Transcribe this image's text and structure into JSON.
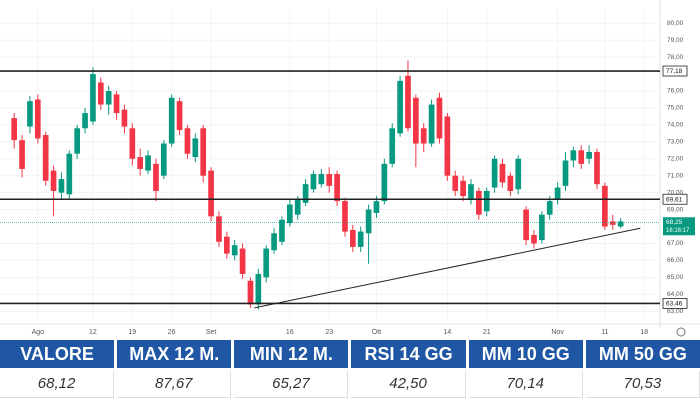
{
  "chart_data": {
    "type": "candlestick",
    "up_color": "#089981",
    "down_color": "#f23645",
    "open": [
      74.4,
      73.1,
      73.9,
      75.5,
      73.4,
      71.3,
      70.0,
      69.9,
      72.3,
      73.8,
      74.2,
      76.5,
      75.2,
      75.8,
      74.9,
      73.8,
      72.1,
      71.3,
      71.7,
      71.0,
      72.9,
      75.4,
      73.8,
      72.1,
      73.8,
      71.3,
      68.6,
      67.4,
      66.3,
      66.7,
      64.8,
      63.4,
      65.0,
      66.6,
      67.1,
      68.2,
      68.7,
      69.4,
      70.2,
      70.5,
      71.1,
      71.1,
      69.5,
      67.8,
      66.8,
      67.6,
      68.8,
      69.5,
      71.7,
      73.5,
      76.9,
      75.6,
      73.8,
      72.9,
      75.6,
      74.5,
      71.0,
      70.7,
      69.6,
      70.1,
      68.9,
      70.3,
      71.7,
      71.0,
      70.2,
      69.0,
      67.5,
      67.2,
      68.7,
      69.6,
      70.4,
      71.9,
      72.5,
      72.0,
      72.4,
      70.4,
      68.3,
      68.0
    ],
    "high": [
      74.7,
      73.4,
      75.7,
      75.8,
      73.6,
      71.6,
      71.2,
      72.5,
      74.0,
      75.0,
      77.4,
      76.8,
      76.3,
      76.0,
      75.2,
      74.1,
      72.6,
      72.5,
      72.0,
      73.1,
      75.8,
      75.6,
      74.0,
      73.5,
      74.0,
      71.5,
      68.9,
      67.7,
      67.2,
      67.0,
      65.0,
      65.5,
      66.9,
      67.9,
      68.6,
      69.6,
      69.8,
      70.8,
      71.3,
      71.4,
      71.5,
      71.3,
      69.7,
      68.1,
      68.0,
      69.3,
      69.8,
      72.0,
      74.1,
      76.9,
      77.8,
      75.8,
      74.1,
      75.5,
      75.9,
      74.7,
      71.3,
      71.0,
      70.8,
      70.3,
      70.3,
      72.2,
      72.0,
      71.2,
      72.2,
      69.2,
      67.8,
      68.9,
      69.8,
      70.6,
      72.4,
      72.7,
      72.8,
      72.8,
      72.6,
      70.6,
      68.7,
      68.5
    ],
    "low": [
      72.6,
      70.9,
      73.5,
      72.9,
      70.4,
      68.6,
      69.6,
      69.6,
      72.0,
      73.5,
      74.0,
      74.9,
      74.6,
      74.3,
      73.5,
      71.6,
      71.0,
      71.1,
      69.5,
      70.8,
      72.7,
      73.4,
      72.0,
      71.8,
      70.6,
      68.3,
      66.8,
      66.1,
      66.0,
      64.9,
      63.2,
      63.1,
      64.7,
      66.4,
      66.9,
      68.0,
      68.4,
      69.2,
      70.0,
      70.3,
      70.0,
      69.2,
      67.4,
      66.5,
      66.5,
      65.8,
      68.5,
      69.3,
      71.5,
      73.3,
      73.6,
      71.5,
      72.4,
      72.7,
      72.9,
      70.7,
      69.8,
      69.5,
      69.3,
      68.4,
      68.6,
      70.0,
      70.3,
      69.8,
      69.9,
      66.9,
      66.7,
      67.0,
      68.4,
      69.3,
      70.1,
      71.5,
      71.4,
      71.7,
      70.2,
      67.8,
      67.8,
      67.9
    ],
    "close": [
      73.1,
      71.4,
      75.4,
      73.2,
      70.7,
      70.1,
      70.8,
      72.3,
      73.8,
      74.7,
      77.0,
      75.2,
      76.0,
      74.7,
      73.9,
      72.0,
      71.4,
      72.2,
      70.1,
      72.9,
      75.6,
      73.7,
      72.3,
      73.2,
      71.0,
      68.6,
      67.1,
      66.4,
      66.9,
      65.2,
      63.4,
      65.2,
      66.7,
      67.6,
      68.4,
      69.3,
      69.6,
      70.5,
      71.1,
      71.1,
      70.4,
      69.5,
      67.7,
      66.8,
      67.7,
      69.0,
      69.5,
      71.7,
      73.8,
      76.6,
      73.8,
      72.9,
      72.9,
      75.2,
      73.2,
      71.0,
      70.1,
      69.8,
      70.5,
      68.7,
      70.1,
      72.0,
      70.6,
      70.1,
      72.0,
      67.2,
      67.0,
      68.7,
      69.5,
      70.3,
      71.9,
      72.5,
      71.7,
      72.4,
      70.5,
      68.0,
      68.1,
      68.3
    ],
    "xlim": [
      -1.8,
      82
    ],
    "ylim": [
      62.6,
      80.9
    ],
    "xticks": [
      {
        "value": 3,
        "label": "Ago"
      },
      {
        "value": 10,
        "label": "12"
      },
      {
        "value": 15,
        "label": "19"
      },
      {
        "value": 20,
        "label": "26"
      },
      {
        "value": 25,
        "label": "Set"
      },
      {
        "value": 35,
        "label": "16"
      },
      {
        "value": 40,
        "label": "23"
      },
      {
        "value": 46,
        "label": "Ott"
      },
      {
        "value": 55,
        "label": "14"
      },
      {
        "value": 60,
        "label": "21"
      },
      {
        "value": 69,
        "label": "Nov"
      },
      {
        "value": 75,
        "label": "11"
      },
      {
        "value": 80,
        "label": "18"
      }
    ],
    "yticks": [
      {
        "value": 63,
        "label": "63,00"
      },
      {
        "value": 64,
        "label": "64,00"
      },
      {
        "value": 65,
        "label": "65,00"
      },
      {
        "value": 66,
        "label": "66,00"
      },
      {
        "value": 67,
        "label": "67,00"
      },
      {
        "value": 69,
        "label": "69,00"
      },
      {
        "value": 70,
        "label": "70,00"
      },
      {
        "value": 71,
        "label": "71,00"
      },
      {
        "value": 72,
        "label": "72,00"
      },
      {
        "value": 73,
        "label": "73,00"
      },
      {
        "value": 74,
        "label": "74,00"
      },
      {
        "value": 75,
        "label": "75,00"
      },
      {
        "value": 76,
        "label": "76,00"
      },
      {
        "value": 78,
        "label": "78,00"
      },
      {
        "value": 79,
        "label": "79,00"
      },
      {
        "value": 80,
        "label": "80,00"
      }
    ],
    "grid": true,
    "levels": [
      {
        "value": 77.18,
        "label": "77,18"
      },
      {
        "value": 69.61,
        "label": "69,61"
      },
      {
        "value": 63.46,
        "label": "63,46"
      }
    ],
    "last": {
      "value": 68.25,
      "label": "68,25",
      "timer": "16:16:17"
    },
    "trendline": {
      "x": [
        30.5,
        79.5
      ],
      "y": [
        63.2,
        67.9
      ]
    }
  },
  "table": {
    "header": [
      "VALORE",
      "MAX 12 M.",
      "MIN 12 M.",
      "RSI 14 GG",
      "MM 10 GG",
      "MM 50 GG"
    ],
    "values": [
      "68,12",
      "87,67",
      "65,27",
      "42,50",
      "70,14",
      "70,53"
    ]
  }
}
